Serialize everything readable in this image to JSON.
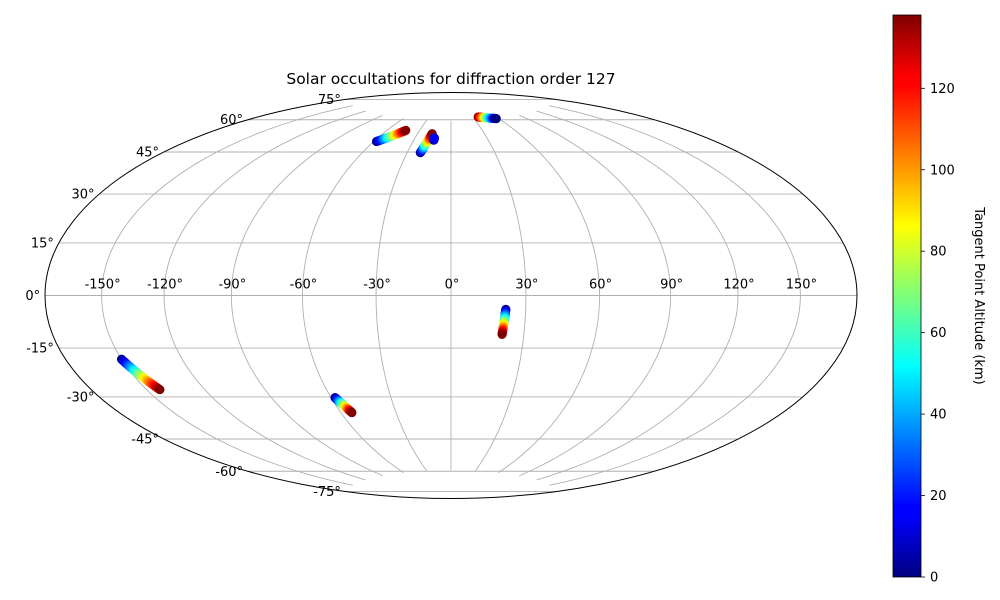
{
  "chart_data": {
    "type": "scatter",
    "projection": "hammer",
    "title": "Solar occultations for diffraction order 127",
    "grid": true,
    "x_ticks": [
      "-150°",
      "-120°",
      "-90°",
      "-60°",
      "-30°",
      "0°",
      "30°",
      "60°",
      "90°",
      "120°",
      "150°"
    ],
    "y_ticks": [
      "75°",
      "60°",
      "45°",
      "30°",
      "15°",
      "0°",
      "-15°",
      "-30°",
      "-45°",
      "-60°",
      "-75°"
    ],
    "colorbar": {
      "label": "Tangent Point Altitude (km)",
      "range": [
        0,
        138
      ],
      "ticks": [
        "0",
        "20",
        "40",
        "60",
        "80",
        "100",
        "120"
      ],
      "colormap": "jet"
    },
    "series": [
      {
        "lon_start": -58,
        "lat_start": 63.5,
        "lon_end": -43,
        "lat_end": 69.5,
        "alt_start": 0,
        "alt_end": 138
      },
      {
        "lon_start": -21,
        "lat_start": 59.5,
        "lon_end": -17,
        "lat_end": 68.5,
        "alt_start": 0,
        "alt_end": 138
      },
      {
        "lon_start": -14,
        "lat_start": 65.5,
        "lon_end": -14,
        "lat_end": 66.5,
        "alt_start": 0,
        "alt_end": 15
      },
      {
        "lon_start": 37,
        "lat_start": 76.5,
        "lon_end": 57,
        "lat_end": 75.0,
        "alt_start": 138,
        "alt_end": 0
      },
      {
        "lon_start": 22,
        "lat_start": -5.5,
        "lon_end": 21,
        "lat_end": -15.5,
        "alt_start": 0,
        "alt_end": 138
      },
      {
        "lon_start": -150,
        "lat_start": -20.5,
        "lon_end": -143,
        "lat_end": -31.5,
        "alt_start": 0,
        "alt_end": 138
      },
      {
        "lon_start": -58,
        "lat_start": -40.5,
        "lon_end": -54,
        "lat_end": -47.0,
        "alt_start": 0,
        "alt_end": 138
      }
    ]
  }
}
